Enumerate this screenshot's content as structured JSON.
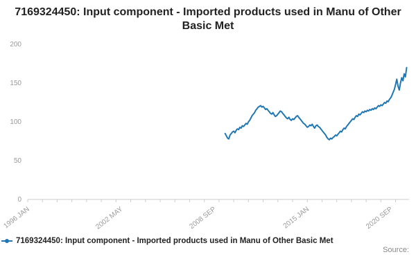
{
  "footer": {
    "source_label": "Source:"
  },
  "chart_data": {
    "type": "line",
    "title": "7169324450: Input component - Imported products used in Manu of Other Basic Met",
    "series_name": "7169324450: Input component - Imported products used in Manu of Other Basic Met",
    "line_color": "#1f77b4",
    "axis": {
      "y_ticks": [
        0,
        50,
        100,
        150,
        200
      ],
      "y_max": 200,
      "x_domain_months": [
        0,
        311
      ],
      "x_tick_labels": [
        "1996 JAN",
        "2002 MAY",
        "2008 SEP",
        "2015 JAN",
        "2020 SEP"
      ],
      "x_tick_months": [
        0,
        76,
        152,
        228,
        296
      ],
      "grid": false,
      "legend_position": "bottom-left"
    },
    "start_label": "2009 JUN",
    "start_month_index": 161,
    "values": [
      85,
      82,
      79,
      78,
      83,
      85,
      87,
      88,
      86,
      89,
      91,
      90,
      93,
      92,
      95,
      94,
      96,
      98,
      97,
      100,
      102,
      105,
      108,
      110,
      112,
      115,
      117,
      119,
      120,
      121,
      119,
      120,
      118,
      116,
      117,
      115,
      113,
      111,
      110,
      112,
      109,
      107,
      108,
      110,
      112,
      114,
      113,
      111,
      109,
      107,
      105,
      104,
      106,
      103,
      102,
      104,
      103,
      105,
      107,
      108,
      106,
      104,
      102,
      100,
      98,
      97,
      95,
      93,
      94,
      96,
      95,
      97,
      94,
      92,
      95,
      96,
      94,
      93,
      91,
      89,
      87,
      85,
      83,
      80,
      78,
      77,
      79,
      78,
      80,
      81,
      83,
      82,
      84,
      86,
      88,
      87,
      90,
      92,
      91,
      94,
      96,
      98,
      100,
      102,
      104,
      103,
      106,
      108,
      107,
      110,
      109,
      111,
      113,
      112,
      114,
      113,
      115,
      114,
      116,
      115,
      117,
      116,
      118,
      117,
      119,
      121,
      120,
      122,
      121,
      123,
      125,
      124,
      127,
      126,
      129,
      131,
      134,
      138,
      142,
      148,
      155,
      146,
      141,
      150,
      157,
      153,
      162,
      158,
      170
    ]
  }
}
